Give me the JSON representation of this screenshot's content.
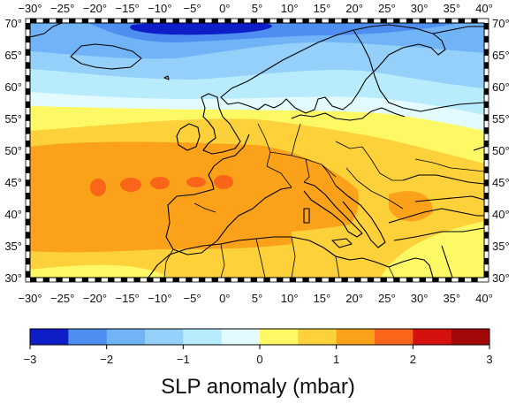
{
  "map": {
    "lon_ticks": [
      "−30°",
      "−25°",
      "−20°",
      "−15°",
      "−10°",
      "−5°",
      "0°",
      "5°",
      "10°",
      "15°",
      "20°",
      "25°",
      "30°",
      "35°",
      "40°"
    ],
    "lat_ticks": [
      "30°",
      "35°",
      "40°",
      "45°",
      "50°",
      "55°",
      "60°",
      "65°",
      "70°"
    ],
    "lon_values": [
      -30,
      -25,
      -20,
      -15,
      -10,
      -5,
      0,
      5,
      10,
      15,
      20,
      25,
      30,
      35,
      40
    ],
    "lat_values": [
      30,
      35,
      40,
      45,
      50,
      55,
      60,
      65,
      70
    ],
    "lon_range": [
      -30,
      40
    ],
    "lat_range": [
      30,
      70
    ],
    "field": "SLP anomaly",
    "coastline_color": "#000000"
  },
  "colorbar": {
    "title": "SLP anomaly (mbar)",
    "tick_labels": [
      "−3",
      "−2",
      "−1",
      "0",
      "1",
      "2",
      "3"
    ],
    "tick_values": [
      -3,
      -2,
      -1,
      0,
      1,
      2,
      3
    ],
    "range": [
      -3,
      3
    ],
    "step": 0.5,
    "colors": [
      "#0d1ec8",
      "#4d8ef0",
      "#71b3f7",
      "#95d0fb",
      "#b8ecfd",
      "#e3fbfe",
      "#fcf965",
      "#fcd13a",
      "#fba11a",
      "#f9661a",
      "#d5110e",
      "#a20808"
    ]
  }
}
